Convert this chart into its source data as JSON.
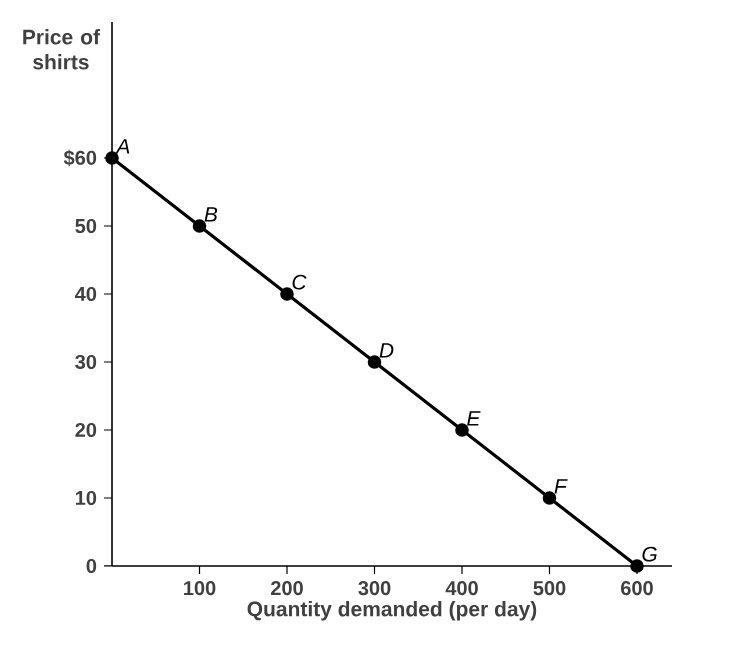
{
  "chart_data": {
    "type": "line",
    "ylabel": "Price of shirts",
    "xlabel": "Quantity demanded (per day)",
    "x": [
      0,
      100,
      200,
      300,
      400,
      500,
      600
    ],
    "series": [
      {
        "color": "#000000",
        "values": [
          60,
          50,
          40,
          30,
          20,
          10,
          0
        ]
      }
    ],
    "marker": "circle",
    "line_style": "solid",
    "xlim": [
      0,
      640
    ],
    "ylim": [
      0,
      80
    ],
    "xticks": [
      100,
      200,
      300,
      400,
      500,
      600
    ],
    "yticks": [
      {
        "value": 0,
        "label": "0"
      },
      {
        "value": 10,
        "label": "10"
      },
      {
        "value": 20,
        "label": "20"
      },
      {
        "value": 30,
        "label": "30"
      },
      {
        "value": 40,
        "label": "40"
      },
      {
        "value": 50,
        "label": "50"
      },
      {
        "value": 60,
        "label": "$60"
      }
    ],
    "annotations": [
      {
        "text": "A",
        "x": 0,
        "y": 60
      },
      {
        "text": "B",
        "x": 100,
        "y": 50
      },
      {
        "text": "C",
        "x": 200,
        "y": 40
      },
      {
        "text": "D",
        "x": 300,
        "y": 30
      },
      {
        "text": "E",
        "x": 400,
        "y": 20
      },
      {
        "text": "F",
        "x": 500,
        "y": 10
      },
      {
        "text": "G",
        "x": 600,
        "y": 0
      }
    ]
  }
}
